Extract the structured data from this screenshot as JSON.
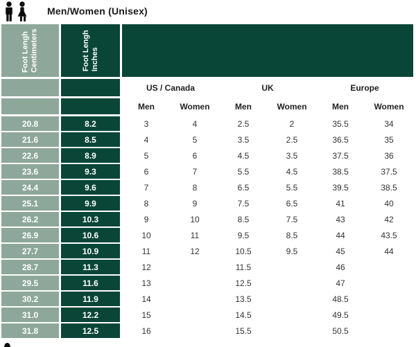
{
  "title": "Men/Women (Unisex)",
  "icons": {
    "header": "men-women-figures-icon",
    "bottom_fragment": "cropped-icon-fragment"
  },
  "colors": {
    "sage_green": "#8EA79B",
    "dark_green": "#0A4637",
    "title_text": "#1A1A1A",
    "data_text": "#333333",
    "header_text_on_color": "#FFFFFF"
  },
  "table": {
    "cm_header": {
      "line1": "Foot Lengh",
      "line2": "Centimeters"
    },
    "in_header": {
      "line1": "Foot Lengh",
      "line2": "Inches"
    },
    "regions": [
      "US / Canada",
      "UK",
      "Europe"
    ],
    "sex_headers": [
      "Men",
      "Women",
      "Men",
      "Women",
      "Men",
      "Women"
    ],
    "rows": [
      {
        "cm": "20.8",
        "inch": "8.2",
        "sizes": [
          "3",
          "4",
          "2.5",
          "2",
          "35.5",
          "34"
        ]
      },
      {
        "cm": "21.6",
        "inch": "8.5",
        "sizes": [
          "4",
          "5",
          "3.5",
          "2.5",
          "36.5",
          "35"
        ]
      },
      {
        "cm": "22.6",
        "inch": "8.9",
        "sizes": [
          "5",
          "6",
          "4.5",
          "3.5",
          "37.5",
          "36"
        ]
      },
      {
        "cm": "23.6",
        "inch": "9.3",
        "sizes": [
          "6",
          "7",
          "5.5",
          "4.5",
          "38.5",
          "37.5"
        ]
      },
      {
        "cm": "24.4",
        "inch": "9.6",
        "sizes": [
          "7",
          "8",
          "6.5",
          "5.5",
          "39.5",
          "38.5"
        ]
      },
      {
        "cm": "25.1",
        "inch": "9.9",
        "sizes": [
          "8",
          "9",
          "7.5",
          "6.5",
          "41",
          "40"
        ]
      },
      {
        "cm": "26.2",
        "inch": "10.3",
        "sizes": [
          "9",
          "10",
          "8.5",
          "7.5",
          "43",
          "42"
        ]
      },
      {
        "cm": "26.9",
        "inch": "10.6",
        "sizes": [
          "10",
          "11",
          "9.5",
          "8.5",
          "44",
          "43.5"
        ]
      },
      {
        "cm": "27.7",
        "inch": "10.9",
        "sizes": [
          "11",
          "12",
          "10.5",
          "9.5",
          "45",
          "44"
        ]
      },
      {
        "cm": "28.7",
        "inch": "11.3",
        "sizes": [
          "12",
          "",
          "11.5",
          "",
          "46",
          ""
        ]
      },
      {
        "cm": "29.5",
        "inch": "11.6",
        "sizes": [
          "13",
          "",
          "12.5",
          "",
          "47",
          ""
        ]
      },
      {
        "cm": "30.2",
        "inch": "11.9",
        "sizes": [
          "14",
          "",
          "13.5",
          "",
          "48.5",
          ""
        ]
      },
      {
        "cm": "31.0",
        "inch": "12.2",
        "sizes": [
          "15",
          "",
          "14.5",
          "",
          "49.5",
          ""
        ]
      },
      {
        "cm": "31.8",
        "inch": "12.5",
        "sizes": [
          "16",
          "",
          "15.5",
          "",
          "50.5",
          ""
        ]
      }
    ]
  }
}
